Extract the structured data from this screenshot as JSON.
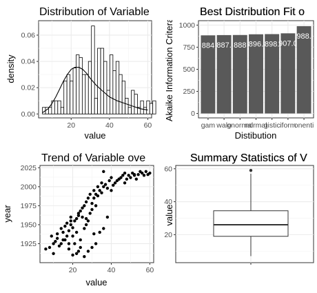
{
  "chart_data": [
    {
      "type": "histogram",
      "title": "Distribution of Variable",
      "xlabel": "value",
      "ylabel": "density",
      "xlim": [
        3,
        62
      ],
      "ylim": [
        -0.003,
        0.071
      ],
      "x_ticks": [
        20,
        40,
        60
      ],
      "y_ticks": [
        0.0,
        0.02,
        0.04,
        0.06
      ],
      "y_tick_labels": [
        "0.00",
        "0.02",
        "0.04",
        "0.06"
      ],
      "bin_width": 1.6,
      "bins_start": 5.0,
      "densities": [
        0.005,
        0.005,
        0.005,
        0.01,
        0.01,
        0.01,
        0.005,
        0.025,
        0.03,
        0.025,
        0.035,
        0.045,
        0.043,
        0.03,
        0.03,
        0.04,
        0.067,
        0.012,
        0.05,
        0.05,
        0.04,
        0.018,
        0.045,
        0.033,
        0.04,
        0.03,
        0.025,
        0.012,
        0.005,
        0.018,
        0.015,
        0.005,
        0.01,
        0.005,
        0.01,
        0.008,
        0.01
      ],
      "density_curve": {
        "x": [
          5,
          8,
          10,
          12,
          14,
          16,
          18,
          20,
          22,
          24,
          26,
          28,
          30,
          33,
          36,
          40,
          44,
          48,
          52,
          56,
          60
        ],
        "y": [
          0.001,
          0.004,
          0.008,
          0.013,
          0.019,
          0.025,
          0.03,
          0.034,
          0.0355,
          0.0355,
          0.034,
          0.031,
          0.027,
          0.022,
          0.018,
          0.013,
          0.01,
          0.008,
          0.006,
          0.004,
          0.003
        ]
      }
    },
    {
      "type": "bar",
      "title": "Best Distribution Fit o",
      "xlabel": "Distibution",
      "ylabel": "Akaike Information Critera",
      "categories": [
        "gamma",
        "weibull",
        "lognormal",
        "normal",
        "logistic",
        "uniform",
        "exponential"
      ],
      "category_display": [
        "gam",
        "walo",
        "gnormal",
        "normal",
        "gistic",
        "iform",
        "onenti"
      ],
      "values": [
        884,
        887,
        888,
        896,
        898,
        907,
        988
      ],
      "value_labels": [
        "884",
        "887.",
        "888",
        "896.",
        "898.",
        "907.0",
        "988."
      ],
      "ylim": [
        -50,
        1050
      ],
      "y_ticks": [
        0,
        250,
        500,
        750,
        1000
      ],
      "bar_color": "#595959"
    },
    {
      "type": "scatter",
      "title": "Trend of Variable ove",
      "xlabel": "value",
      "ylabel": "year",
      "xlim": [
        3,
        62
      ],
      "ylim": [
        1900,
        2028
      ],
      "x_ticks": [
        20,
        40,
        60
      ],
      "y_ticks": [
        1925,
        1950,
        1975,
        2000,
        2025
      ],
      "x": [
        6,
        8,
        9,
        10,
        11,
        13,
        12,
        14,
        15,
        15,
        16,
        17,
        17,
        18,
        18,
        19,
        19,
        20,
        20,
        21,
        21,
        22,
        22,
        23,
        23,
        24,
        24,
        25,
        25,
        26,
        26,
        27,
        27,
        28,
        28,
        29,
        29,
        30,
        30,
        31,
        31,
        32,
        32,
        33,
        33,
        34,
        35,
        35,
        36,
        36,
        37,
        38,
        39,
        40,
        40,
        41,
        42,
        43,
        44,
        45,
        46,
        47,
        48,
        49,
        50,
        51,
        52,
        53,
        54,
        55,
        56,
        57,
        58,
        59,
        60,
        20,
        22,
        24,
        26,
        28,
        30,
        32,
        14,
        16,
        18,
        34,
        36,
        38,
        12,
        10,
        19,
        23,
        27,
        31,
        44,
        47,
        52
      ],
      "y": [
        1918,
        1920,
        1935,
        1925,
        1928,
        1922,
        1932,
        1945,
        1940,
        1930,
        1948,
        1935,
        1952,
        1942,
        1925,
        1950,
        1960,
        1946,
        1935,
        1955,
        1925,
        1958,
        1940,
        1962,
        1915,
        1968,
        1930,
        1960,
        1972,
        1945,
        1975,
        1950,
        1980,
        1955,
        1985,
        1965,
        1990,
        1970,
        1978,
        1985,
        1995,
        1975,
        1990,
        1988,
        2000,
        1995,
        1992,
        2005,
        2000,
        2020,
        2003,
        1998,
        2008,
        1995,
        2012,
        2002,
        2005,
        2008,
        2010,
        2012,
        2015,
        2005,
        2010,
        2015,
        2012,
        2018,
        2015,
        2010,
        2016,
        2020,
        2018,
        2015,
        2020,
        2016,
        2018,
        1910,
        1912,
        1920,
        1908,
        1915,
        1920,
        1925,
        1925,
        1930,
        1918,
        1940,
        1945,
        1960,
        1938,
        1912,
        1955,
        1965,
        1958,
        1938,
        2010,
        2018,
        2016
      ]
    },
    {
      "type": "boxplot",
      "title": "Summary Statistics of V",
      "ylabel": "value",
      "ylim": [
        3,
        62
      ],
      "y_ticks": [
        20,
        40,
        60
      ],
      "whisker_low": 7,
      "q1": 19,
      "median": 26,
      "q3": 34.5,
      "whisker_high": 57,
      "outliers": [
        59
      ]
    }
  ]
}
